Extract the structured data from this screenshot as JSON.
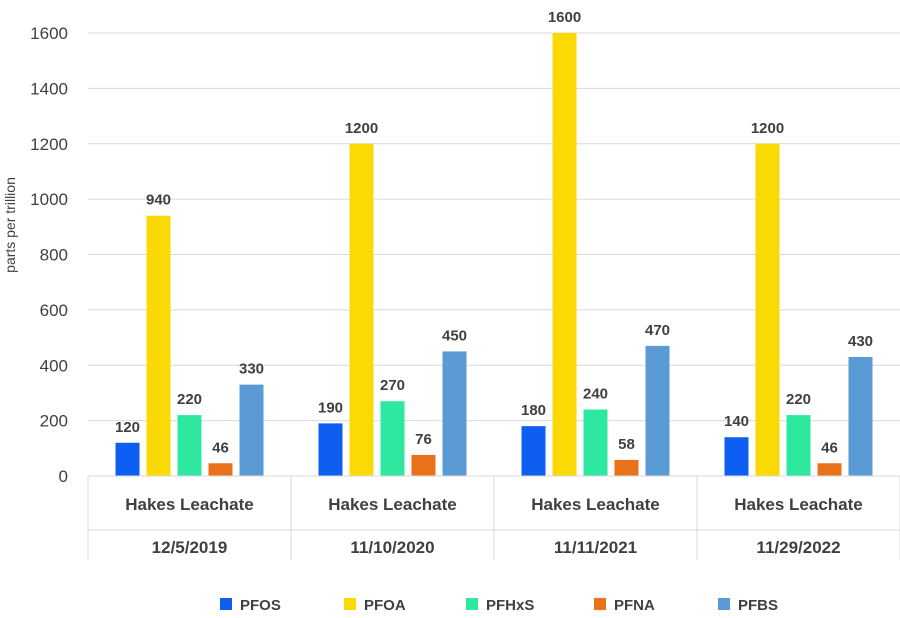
{
  "chart_data": {
    "type": "bar",
    "title": "",
    "xlabel": "",
    "ylabel": "parts per trillion",
    "ylim": [
      0,
      1600
    ],
    "yticks": [
      0,
      200,
      400,
      600,
      800,
      1000,
      1200,
      1400,
      1600
    ],
    "categories": [
      {
        "group": "Hakes Leachate",
        "date": "12/5/2019"
      },
      {
        "group": "Hakes Leachate",
        "date": "11/10/2020"
      },
      {
        "group": "Hakes Leachate",
        "date": "11/11/2021"
      },
      {
        "group": "Hakes Leachate",
        "date": "11/29/2022"
      }
    ],
    "series": [
      {
        "name": "PFOS",
        "color": "#0f5ef2",
        "values": [
          120,
          190,
          180,
          140
        ]
      },
      {
        "name": "PFOA",
        "color": "#fad905",
        "values": [
          940,
          1200,
          1600,
          1200
        ]
      },
      {
        "name": "PFHxS",
        "color": "#2ee8a0",
        "values": [
          220,
          270,
          240,
          220
        ]
      },
      {
        "name": "PFNA",
        "color": "#e8711a",
        "values": [
          46,
          76,
          58,
          46
        ]
      },
      {
        "name": "PFBS",
        "color": "#5b9bd5",
        "values": [
          330,
          450,
          470,
          430
        ]
      }
    ],
    "legend_position": "bottom",
    "grid": true
  }
}
